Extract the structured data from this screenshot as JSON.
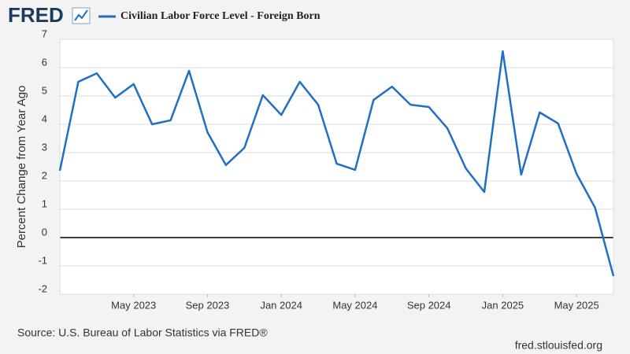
{
  "brand": "FRED",
  "chart_data": {
    "type": "line",
    "y_label": "Percent Change from Year Ago",
    "x": [
      "2023-01",
      "2023-02",
      "2023-03",
      "2023-04",
      "2023-05",
      "2023-06",
      "2023-07",
      "2023-08",
      "2023-09",
      "2023-10",
      "2023-11",
      "2023-12",
      "2024-01",
      "2024-02",
      "2024-03",
      "2024-04",
      "2024-05",
      "2024-06",
      "2024-07",
      "2024-08",
      "2024-09",
      "2024-10",
      "2024-11",
      "2024-12",
      "2025-01",
      "2025-02",
      "2025-03",
      "2025-04",
      "2025-05",
      "2025-06",
      "2025-07"
    ],
    "series": [
      {
        "name": "Civilian Labor Force Level - Foreign Born",
        "color": "#1f6fc5",
        "values": [
          2.36,
          5.5,
          5.8,
          4.94,
          5.42,
          4.0,
          4.14,
          5.89,
          3.72,
          2.56,
          3.17,
          5.03,
          4.33,
          5.5,
          4.69,
          2.61,
          2.39,
          4.86,
          5.33,
          4.69,
          4.61,
          3.86,
          2.44,
          1.61,
          6.58,
          2.22,
          4.42,
          4.03,
          2.25,
          1.06,
          -1.36
        ]
      }
    ],
    "xticks": [
      {
        "value": "2023-05",
        "label": "May 2023"
      },
      {
        "value": "2023-09",
        "label": "Sep 2023"
      },
      {
        "value": "2024-01",
        "label": "Jan 2024"
      },
      {
        "value": "2024-05",
        "label": "May 2024"
      },
      {
        "value": "2024-09",
        "label": "Sep 2024"
      },
      {
        "value": "2025-01",
        "label": "Jan 2025"
      },
      {
        "value": "2025-05",
        "label": "May 2025"
      }
    ],
    "ylim": [
      -2,
      7
    ],
    "yticks": [
      -2,
      -1,
      0,
      1,
      2,
      3,
      4,
      5,
      6,
      7
    ],
    "grid": true,
    "source": "Source: U.S. Bureau of Labor Statistics via FRED®",
    "site": "fred.stlouisfed.org"
  }
}
